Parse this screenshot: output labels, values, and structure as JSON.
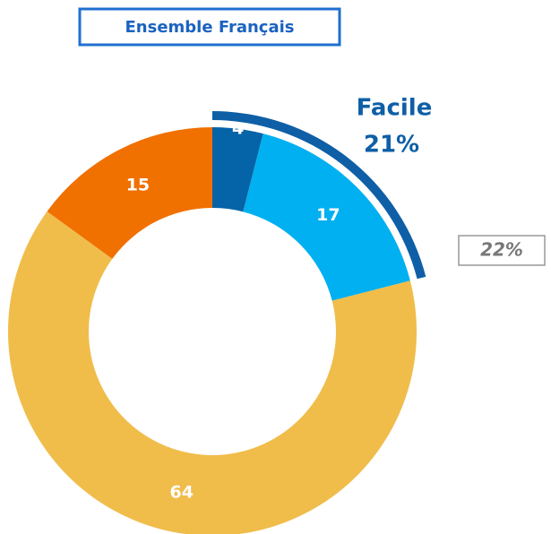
{
  "chart_data": {
    "type": "donut",
    "title": "Ensemble Français",
    "values": [
      4,
      17,
      64,
      15
    ],
    "colors": [
      "#0563a8",
      "#00b0f0",
      "#f0bd4b",
      "#f07000"
    ],
    "annotation": {
      "text": "Facile",
      "value": 21,
      "value_label": "21%",
      "color": "#0e5fa6"
    },
    "side_note": "22%"
  }
}
